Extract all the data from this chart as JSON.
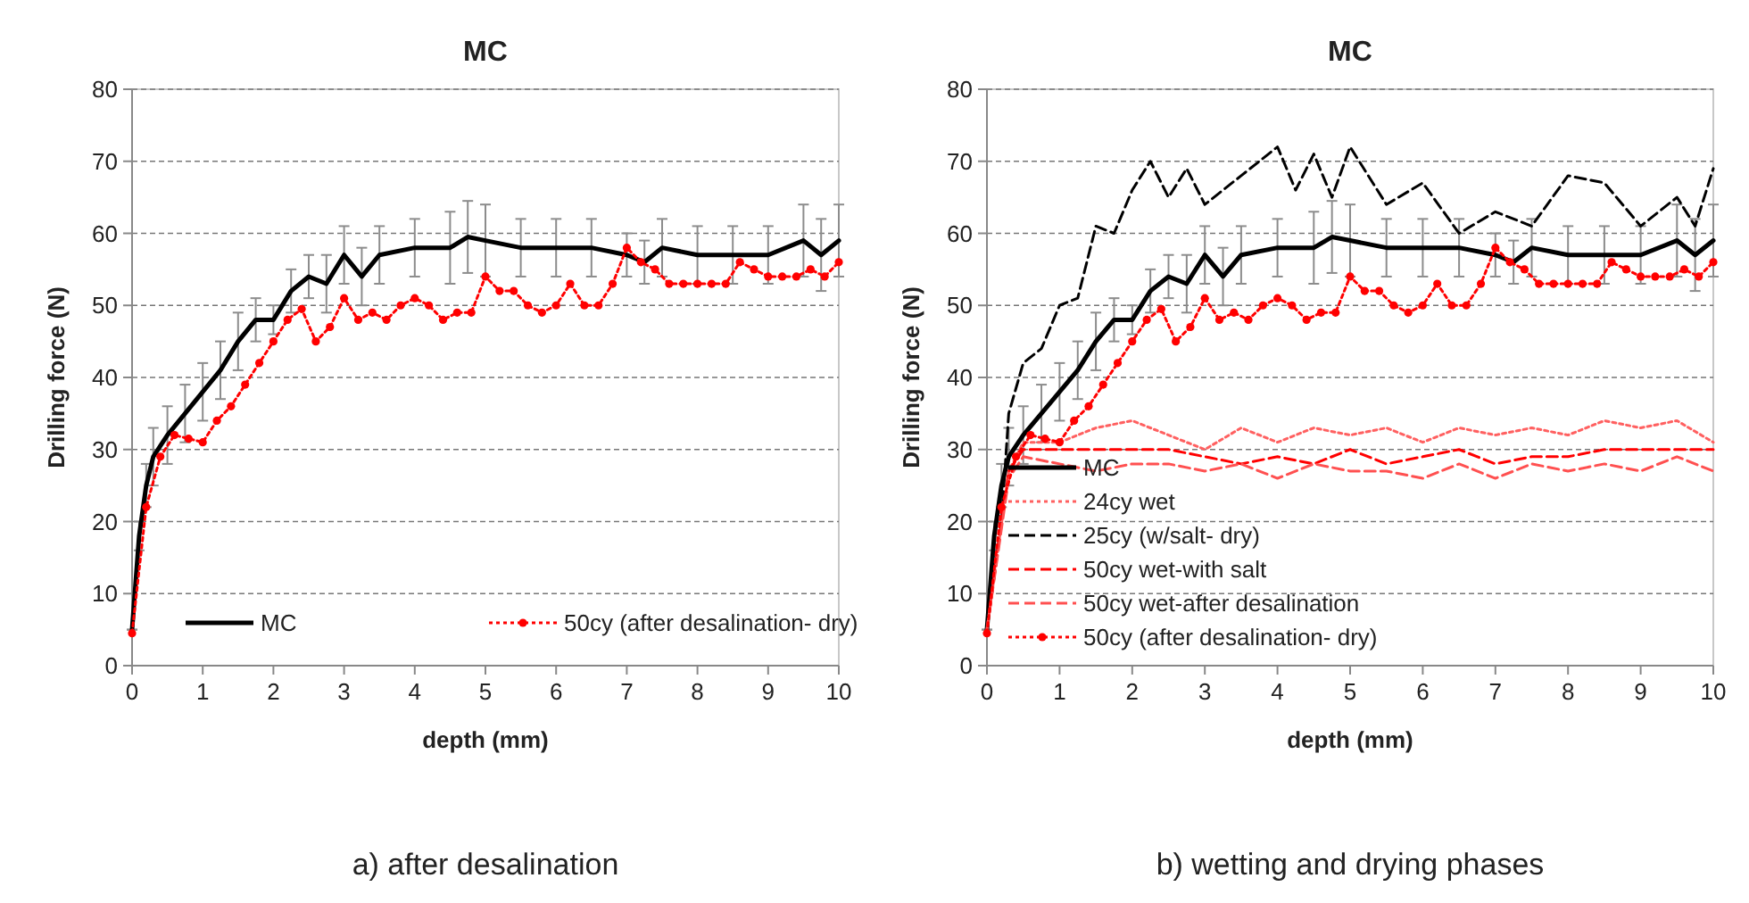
{
  "chart_data": [
    {
      "type": "line",
      "title": "MC",
      "xlabel": "depth (mm)",
      "ylabel": "Drilling force (N)",
      "xlim": [
        0,
        10
      ],
      "xticks": [
        0,
        1,
        2,
        3,
        4,
        5,
        6,
        7,
        8,
        9,
        10
      ],
      "ylim": [
        0,
        80
      ],
      "yticks": [
        0,
        10,
        20,
        30,
        40,
        50,
        60,
        70,
        80
      ],
      "grid": "y",
      "legend": "bottom",
      "annotations": [
        "a) after desalination"
      ],
      "series": [
        {
          "name": "MC",
          "color": "#000000",
          "line_style": "solid",
          "marker": "none",
          "x": [
            0,
            0.1,
            0.2,
            0.3,
            0.5,
            0.75,
            1,
            1.25,
            1.5,
            1.75,
            2,
            2.25,
            2.5,
            2.75,
            3,
            3.25,
            3.5,
            4,
            4.5,
            4.75,
            5,
            5.5,
            6,
            6.5,
            7,
            7.25,
            7.5,
            8,
            8.5,
            9,
            9.5,
            9.75,
            10
          ],
          "values": [
            5,
            18,
            25,
            29,
            32,
            35,
            38,
            41,
            45,
            48,
            48,
            52,
            54,
            53,
            57,
            54,
            57,
            58,
            58,
            59.5,
            59,
            58,
            58,
            58,
            57,
            56,
            58,
            57,
            57,
            57,
            59,
            57,
            59
          ],
          "errors": [
            0,
            2,
            3,
            4,
            4,
            4,
            4,
            4,
            4,
            3,
            2,
            3,
            3,
            4,
            4,
            4,
            4,
            4,
            5,
            5,
            5,
            4,
            4,
            4,
            3,
            3,
            4,
            4,
            4,
            4,
            5,
            5,
            5
          ]
        },
        {
          "name": "50cy (after desalination- dry)",
          "color": "#ff0000",
          "line_style": "dotted",
          "marker": "circle",
          "x": [
            0,
            0.2,
            0.4,
            0.6,
            0.8,
            1,
            1.2,
            1.4,
            1.6,
            1.8,
            2,
            2.2,
            2.4,
            2.6,
            2.8,
            3,
            3.2,
            3.4,
            3.6,
            3.8,
            4,
            4.2,
            4.4,
            4.6,
            4.8,
            5,
            5.2,
            5.4,
            5.6,
            5.8,
            6,
            6.2,
            6.4,
            6.6,
            6.8,
            7,
            7.2,
            7.4,
            7.6,
            7.8,
            8,
            8.2,
            8.4,
            8.6,
            8.8,
            9,
            9.2,
            9.4,
            9.6,
            9.8,
            10
          ],
          "values": [
            4.5,
            22,
            29,
            32,
            31.5,
            31,
            34,
            36,
            39,
            42,
            45,
            48,
            49.5,
            45,
            47,
            51,
            48,
            49,
            48,
            50,
            51,
            50,
            48,
            49,
            49,
            54,
            52,
            52,
            50,
            49,
            50,
            53,
            50,
            50,
            53,
            58,
            56,
            55,
            53,
            53,
            53,
            53,
            53,
            56,
            55,
            54,
            54,
            54,
            55,
            54,
            56
          ]
        }
      ]
    },
    {
      "type": "line",
      "title": "MC",
      "xlabel": "depth (mm)",
      "ylabel": "Drilling force (N)",
      "xlim": [
        0,
        10
      ],
      "xticks": [
        0,
        1,
        2,
        3,
        4,
        5,
        6,
        7,
        8,
        9,
        10
      ],
      "ylim": [
        0,
        80
      ],
      "yticks": [
        0,
        10,
        20,
        30,
        40,
        50,
        60,
        70,
        80
      ],
      "grid": "y",
      "legend": "bottom left",
      "annotations": [
        "b) wetting and drying phases"
      ],
      "series": [
        {
          "name": "MC",
          "color": "#000000",
          "line_style": "solid",
          "marker": "none",
          "x": [
            0,
            0.1,
            0.2,
            0.3,
            0.5,
            0.75,
            1,
            1.25,
            1.5,
            1.75,
            2,
            2.25,
            2.5,
            2.75,
            3,
            3.25,
            3.5,
            4,
            4.5,
            4.75,
            5,
            5.5,
            6,
            6.5,
            7,
            7.25,
            7.5,
            8,
            8.5,
            9,
            9.5,
            9.75,
            10
          ],
          "values": [
            5,
            18,
            25,
            29,
            32,
            35,
            38,
            41,
            45,
            48,
            48,
            52,
            54,
            53,
            57,
            54,
            57,
            58,
            58,
            59.5,
            59,
            58,
            58,
            58,
            57,
            56,
            58,
            57,
            57,
            57,
            59,
            57,
            59
          ],
          "errors": [
            0,
            2,
            3,
            4,
            4,
            4,
            4,
            4,
            4,
            3,
            2,
            3,
            3,
            4,
            4,
            4,
            4,
            4,
            5,
            5,
            5,
            4,
            4,
            4,
            3,
            3,
            4,
            4,
            4,
            4,
            5,
            5,
            5
          ]
        },
        {
          "name": "24cy wet",
          "color": "#ff6060",
          "line_style": "dotted",
          "marker": "none",
          "x": [
            0,
            0.3,
            0.5,
            1,
            1.5,
            2,
            2.5,
            3,
            3.5,
            4,
            4.5,
            5,
            5.5,
            6,
            6.5,
            7,
            7.5,
            8,
            8.5,
            9,
            9.5,
            10
          ],
          "values": [
            5,
            27,
            31,
            31,
            33,
            34,
            32,
            30,
            33,
            31,
            33,
            32,
            33,
            31,
            33,
            32,
            33,
            32,
            34,
            33,
            34,
            31
          ]
        },
        {
          "name": "25cy (w/salt- dry)",
          "color": "#000000",
          "line_style": "dashed",
          "marker": "none",
          "x": [
            0,
            0.2,
            0.3,
            0.5,
            0.75,
            1,
            1.25,
            1.5,
            1.75,
            2,
            2.25,
            2.5,
            2.75,
            3,
            3.25,
            3.5,
            3.75,
            4,
            4.25,
            4.5,
            4.75,
            5,
            5.5,
            6,
            6.5,
            7,
            7.5,
            8,
            8.5,
            9,
            9.5,
            9.75,
            10
          ],
          "values": [
            5,
            20,
            35,
            42,
            44,
            50,
            51,
            61,
            60,
            66,
            70,
            65,
            69,
            64,
            66,
            68,
            70,
            72,
            66,
            71,
            65,
            72,
            64,
            67,
            60,
            63,
            61,
            68,
            67,
            61,
            65,
            61,
            69
          ]
        },
        {
          "name": "50cy wet-with salt",
          "color": "#ff0000",
          "line_style": "dashed",
          "marker": "none",
          "x": [
            0,
            0.3,
            0.5,
            1,
            1.5,
            2,
            2.5,
            3,
            3.5,
            4,
            4.5,
            5,
            5.5,
            6,
            6.5,
            7,
            7.5,
            8,
            8.5,
            9,
            9.5,
            10
          ],
          "values": [
            5,
            27,
            30,
            30,
            30,
            30,
            30,
            29,
            28,
            29,
            28,
            30,
            28,
            29,
            30,
            28,
            29,
            29,
            30,
            30,
            30,
            30
          ]
        },
        {
          "name": "50cy wet-after desalination",
          "color": "#ff5050",
          "line_style": "dashed",
          "marker": "none",
          "x": [
            0,
            0.3,
            0.5,
            1,
            1.5,
            2,
            2.5,
            3,
            3.5,
            4,
            4.5,
            5,
            5.5,
            6,
            6.5,
            7,
            7.5,
            8,
            8.5,
            9,
            9.5,
            10
          ],
          "values": [
            5,
            26,
            29,
            28,
            27,
            28,
            28,
            27,
            28,
            26,
            28,
            27,
            27,
            26,
            28,
            26,
            28,
            27,
            28,
            27,
            29,
            27
          ]
        },
        {
          "name": "50cy (after desalination- dry)",
          "color": "#ff0000",
          "line_style": "dotted",
          "marker": "circle",
          "x": [
            0,
            0.2,
            0.4,
            0.6,
            0.8,
            1,
            1.2,
            1.4,
            1.6,
            1.8,
            2,
            2.2,
            2.4,
            2.6,
            2.8,
            3,
            3.2,
            3.4,
            3.6,
            3.8,
            4,
            4.2,
            4.4,
            4.6,
            4.8,
            5,
            5.2,
            5.4,
            5.6,
            5.8,
            6,
            6.2,
            6.4,
            6.6,
            6.8,
            7,
            7.2,
            7.4,
            7.6,
            7.8,
            8,
            8.2,
            8.4,
            8.6,
            8.8,
            9,
            9.2,
            9.4,
            9.6,
            9.8,
            10
          ],
          "values": [
            4.5,
            22,
            29,
            32,
            31.5,
            31,
            34,
            36,
            39,
            42,
            45,
            48,
            49.5,
            45,
            47,
            51,
            48,
            49,
            48,
            50,
            51,
            50,
            48,
            49,
            49,
            54,
            52,
            52,
            50,
            49,
            50,
            53,
            50,
            50,
            53,
            58,
            56,
            55,
            53,
            53,
            53,
            53,
            53,
            56,
            55,
            54,
            54,
            54,
            55,
            54,
            56
          ]
        }
      ]
    }
  ]
}
